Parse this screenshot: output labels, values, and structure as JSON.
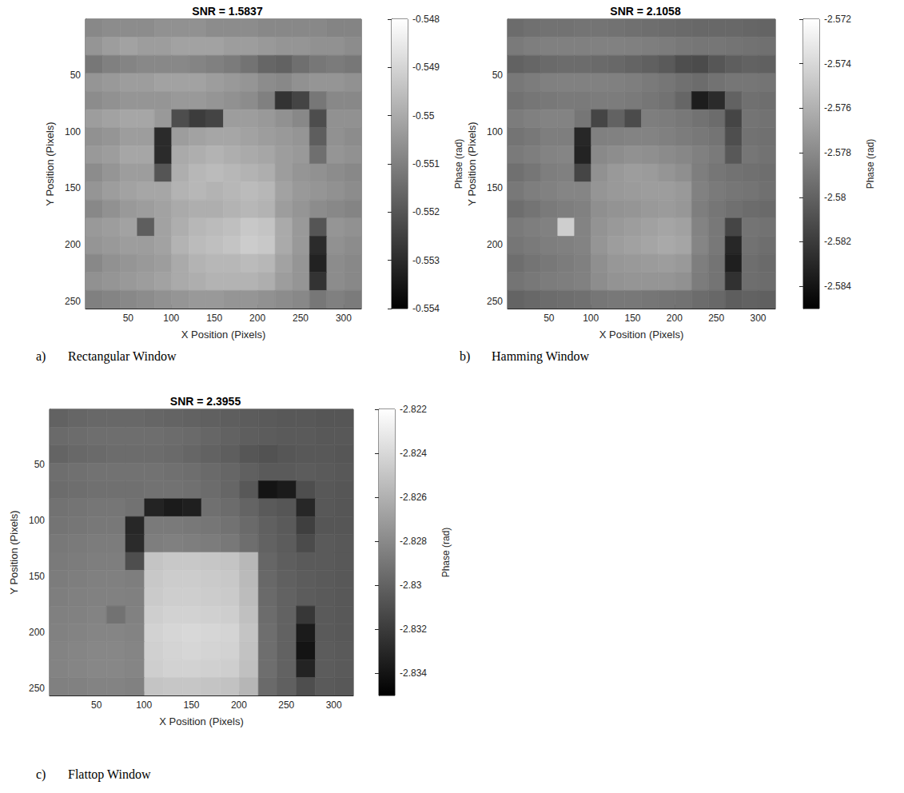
{
  "chart_data": [
    {
      "type": "heatmap",
      "title": "SNR = 1.5837",
      "panel": "a)",
      "caption": "Rectangular Window",
      "x_label": "X Position (Pixels)",
      "y_label": "Y Position (Pixels)",
      "colorbar_label": "Phase (rad)",
      "xlim": [
        0.5,
        320.5
      ],
      "ylim": [
        0.5,
        256.5
      ],
      "xticks": [
        50,
        100,
        150,
        200,
        250,
        300
      ],
      "yticks": [
        50,
        100,
        150,
        200,
        250
      ],
      "colorbar_lim": [
        -0.554,
        -0.548
      ],
      "colorbar_ticks": [
        -0.554,
        -0.553,
        -0.552,
        -0.551,
        -0.55,
        -0.549,
        -0.548
      ],
      "x": [
        10.5,
        30.5,
        50.5,
        70.5,
        90.5,
        110.5,
        130.5,
        150.5,
        170.5,
        190.5,
        210.5,
        230.5,
        250.5,
        270.5,
        290.5,
        310.5
      ],
      "y": [
        8.5,
        24.5,
        40.5,
        56.5,
        72.5,
        88.5,
        104.5,
        120.5,
        136.5,
        152.5,
        168.5,
        184.5,
        200.5,
        216.5,
        232.5,
        248.5
      ],
      "values": [
        [
          -0.5508,
          -0.5507,
          -0.5507,
          -0.5507,
          -0.5506,
          -0.5506,
          -0.5506,
          -0.5507,
          -0.5507,
          -0.5507,
          -0.5508,
          -0.5508,
          -0.5508,
          -0.5508,
          -0.5509,
          -0.5509
        ],
        [
          -0.5505,
          -0.5503,
          -0.5502,
          -0.5503,
          -0.5503,
          -0.5502,
          -0.5502,
          -0.5502,
          -0.5503,
          -0.5503,
          -0.5504,
          -0.5505,
          -0.5505,
          -0.5506,
          -0.5506,
          -0.5507
        ],
        [
          -0.5512,
          -0.551,
          -0.5509,
          -0.5508,
          -0.5508,
          -0.5508,
          -0.5509,
          -0.551,
          -0.5511,
          -0.5513,
          -0.5516,
          -0.5517,
          -0.5514,
          -0.5512,
          -0.5511,
          -0.5512
        ],
        [
          -0.5505,
          -0.5504,
          -0.5503,
          -0.5503,
          -0.5502,
          -0.5502,
          -0.5502,
          -0.5503,
          -0.5504,
          -0.5505,
          -0.5507,
          -0.5508,
          -0.5506,
          -0.5505,
          -0.5505,
          -0.5506
        ],
        [
          -0.5507,
          -0.5506,
          -0.5505,
          -0.5505,
          -0.5505,
          -0.5504,
          -0.5504,
          -0.5505,
          -0.5506,
          -0.5507,
          -0.551,
          -0.5528,
          -0.5524,
          -0.5512,
          -0.5508,
          -0.5508
        ],
        [
          -0.5503,
          -0.5502,
          -0.5501,
          -0.5501,
          -0.5504,
          -0.5522,
          -0.5526,
          -0.5524,
          -0.5503,
          -0.5503,
          -0.5504,
          -0.5506,
          -0.5508,
          -0.5522,
          -0.5506,
          -0.5506
        ],
        [
          -0.5506,
          -0.5505,
          -0.5503,
          -0.5503,
          -0.553,
          -0.5503,
          -0.5502,
          -0.5501,
          -0.5501,
          -0.5502,
          -0.5503,
          -0.5504,
          -0.5505,
          -0.5518,
          -0.5506,
          -0.5507
        ],
        [
          -0.5504,
          -0.5503,
          -0.5501,
          -0.5501,
          -0.553,
          -0.55,
          -0.5499,
          -0.5498,
          -0.5499,
          -0.55,
          -0.5501,
          -0.5503,
          -0.5504,
          -0.5514,
          -0.5505,
          -0.5506
        ],
        [
          -0.5507,
          -0.5505,
          -0.5503,
          -0.5503,
          -0.552,
          -0.5499,
          -0.5497,
          -0.5496,
          -0.5497,
          -0.5498,
          -0.5499,
          -0.5503,
          -0.5505,
          -0.5506,
          -0.5507,
          -0.5508
        ],
        [
          -0.5505,
          -0.5503,
          -0.5502,
          -0.5501,
          -0.5501,
          -0.5498,
          -0.5497,
          -0.5498,
          -0.5497,
          -0.5496,
          -0.5497,
          -0.5502,
          -0.5504,
          -0.5505,
          -0.5506,
          -0.5507
        ],
        [
          -0.5508,
          -0.5506,
          -0.5504,
          -0.5503,
          -0.5502,
          -0.55,
          -0.5499,
          -0.5499,
          -0.5498,
          -0.5497,
          -0.5498,
          -0.5503,
          -0.5505,
          -0.5507,
          -0.5508,
          -0.5509
        ],
        [
          -0.5504,
          -0.5503,
          -0.5502,
          -0.5518,
          -0.5502,
          -0.5499,
          -0.5497,
          -0.5496,
          -0.5495,
          -0.5493,
          -0.5494,
          -0.55,
          -0.5504,
          -0.552,
          -0.5505,
          -0.5506
        ],
        [
          -0.5505,
          -0.5504,
          -0.5503,
          -0.5503,
          -0.5502,
          -0.5498,
          -0.5496,
          -0.5495,
          -0.5494,
          -0.5492,
          -0.5493,
          -0.55,
          -0.5504,
          -0.553,
          -0.5506,
          -0.5507
        ],
        [
          -0.5508,
          -0.5506,
          -0.5505,
          -0.5504,
          -0.5503,
          -0.55,
          -0.5498,
          -0.5497,
          -0.5497,
          -0.5496,
          -0.5497,
          -0.5502,
          -0.5505,
          -0.5532,
          -0.5507,
          -0.5508
        ],
        [
          -0.5506,
          -0.5505,
          -0.5504,
          -0.5503,
          -0.5502,
          -0.55,
          -0.5499,
          -0.5498,
          -0.5498,
          -0.5498,
          -0.5499,
          -0.5503,
          -0.5505,
          -0.5528,
          -0.5507,
          -0.5508
        ],
        [
          -0.551,
          -0.5509,
          -0.5508,
          -0.5507,
          -0.5506,
          -0.5505,
          -0.5504,
          -0.5504,
          -0.5505,
          -0.5505,
          -0.5506,
          -0.5507,
          -0.5508,
          -0.5512,
          -0.551,
          -0.5511
        ]
      ]
    },
    {
      "type": "heatmap",
      "title": "SNR = 2.1058",
      "panel": "b)",
      "caption": "Hamming Window",
      "x_label": "X Position (Pixels)",
      "y_label": "Y Position (Pixels)",
      "colorbar_label": "Phase (rad)",
      "xlim": [
        0.5,
        320.5
      ],
      "ylim": [
        0.5,
        256.5
      ],
      "xticks": [
        50,
        100,
        150,
        200,
        250,
        300
      ],
      "yticks": [
        50,
        100,
        150,
        200,
        250
      ],
      "colorbar_lim": [
        -2.585,
        -2.572
      ],
      "colorbar_ticks": [
        -2.584,
        -2.582,
        -2.58,
        -2.578,
        -2.576,
        -2.574,
        -2.572
      ],
      "x": [
        10.5,
        30.5,
        50.5,
        70.5,
        90.5,
        110.5,
        130.5,
        150.5,
        170.5,
        190.5,
        210.5,
        230.5,
        250.5,
        270.5,
        290.5,
        310.5
      ],
      "y": [
        8.5,
        24.5,
        40.5,
        56.5,
        72.5,
        88.5,
        104.5,
        120.5,
        136.5,
        152.5,
        168.5,
        184.5,
        200.5,
        216.5,
        232.5,
        248.5
      ],
      "values": [
        [
          -2.5795,
          -2.5793,
          -2.5792,
          -2.5792,
          -2.5791,
          -2.5791,
          -2.5792,
          -2.5793,
          -2.5794,
          -2.5795,
          -2.5796,
          -2.5797,
          -2.5797,
          -2.5797,
          -2.5798,
          -2.5799
        ],
        [
          -2.5788,
          -2.5786,
          -2.5785,
          -2.5785,
          -2.5785,
          -2.5784,
          -2.5784,
          -2.5785,
          -2.5786,
          -2.5787,
          -2.5789,
          -2.579,
          -2.579,
          -2.5791,
          -2.5792,
          -2.5793
        ],
        [
          -2.58,
          -2.5798,
          -2.5796,
          -2.5795,
          -2.5795,
          -2.5796,
          -2.5797,
          -2.5799,
          -2.5801,
          -2.5804,
          -2.581,
          -2.5812,
          -2.5806,
          -2.5802,
          -2.58,
          -2.5801
        ],
        [
          -2.5789,
          -2.5787,
          -2.5785,
          -2.5784,
          -2.5784,
          -2.5784,
          -2.5785,
          -2.5786,
          -2.5788,
          -2.579,
          -2.5793,
          -2.5795,
          -2.5792,
          -2.579,
          -2.579,
          -2.5791
        ],
        [
          -2.5792,
          -2.579,
          -2.5789,
          -2.5788,
          -2.5788,
          -2.5787,
          -2.5787,
          -2.5788,
          -2.579,
          -2.5792,
          -2.5798,
          -2.5835,
          -2.5828,
          -2.58,
          -2.5793,
          -2.5794
        ],
        [
          -2.5787,
          -2.5785,
          -2.5783,
          -2.5783,
          -2.579,
          -2.5815,
          -2.58,
          -2.5812,
          -2.5786,
          -2.5787,
          -2.5789,
          -2.5792,
          -2.5795,
          -2.5815,
          -2.5791,
          -2.5792
        ],
        [
          -2.5791,
          -2.5789,
          -2.5786,
          -2.5786,
          -2.583,
          -2.5785,
          -2.5784,
          -2.5783,
          -2.5783,
          -2.5785,
          -2.5787,
          -2.5789,
          -2.5791,
          -2.581,
          -2.5792,
          -2.5793
        ],
        [
          -2.5788,
          -2.5786,
          -2.5783,
          -2.5782,
          -2.5832,
          -2.578,
          -2.5778,
          -2.5776,
          -2.5777,
          -2.5779,
          -2.5781,
          -2.5785,
          -2.5788,
          -2.5805,
          -2.579,
          -2.5792
        ],
        [
          -2.5793,
          -2.579,
          -2.5786,
          -2.5785,
          -2.5815,
          -2.5776,
          -2.5772,
          -2.577,
          -2.5771,
          -2.5774,
          -2.5777,
          -2.5786,
          -2.579,
          -2.5792,
          -2.5793,
          -2.5794
        ],
        [
          -2.5789,
          -2.5786,
          -2.5784,
          -2.5782,
          -2.5782,
          -2.5774,
          -2.5772,
          -2.5771,
          -2.577,
          -2.577,
          -2.5772,
          -2.5784,
          -2.5788,
          -2.579,
          -2.5791,
          -2.5793
        ],
        [
          -2.5794,
          -2.5791,
          -2.5788,
          -2.5786,
          -2.5784,
          -2.5777,
          -2.5775,
          -2.5774,
          -2.5772,
          -2.5771,
          -2.5773,
          -2.5786,
          -2.579,
          -2.5793,
          -2.5795,
          -2.5796
        ],
        [
          -2.5788,
          -2.5786,
          -2.5784,
          -2.5745,
          -2.5783,
          -2.5775,
          -2.5772,
          -2.577,
          -2.5768,
          -2.5766,
          -2.5768,
          -2.5783,
          -2.5789,
          -2.5815,
          -2.5791,
          -2.5792
        ],
        [
          -2.579,
          -2.5788,
          -2.5786,
          -2.5785,
          -2.5783,
          -2.5774,
          -2.577,
          -2.5768,
          -2.5766,
          -2.5764,
          -2.5766,
          -2.5782,
          -2.5789,
          -2.583,
          -2.5792,
          -2.5794
        ],
        [
          -2.5794,
          -2.5791,
          -2.5789,
          -2.5787,
          -2.5785,
          -2.5777,
          -2.5773,
          -2.5772,
          -2.5771,
          -2.577,
          -2.5772,
          -2.5786,
          -2.5791,
          -2.5834,
          -2.5794,
          -2.5796
        ],
        [
          -2.5791,
          -2.5789,
          -2.5787,
          -2.5786,
          -2.5784,
          -2.5778,
          -2.5775,
          -2.5774,
          -2.5774,
          -2.5774,
          -2.5776,
          -2.5787,
          -2.5791,
          -2.5825,
          -2.5794,
          -2.5795
        ],
        [
          -2.5799,
          -2.5797,
          -2.5795,
          -2.5794,
          -2.5793,
          -2.579,
          -2.5789,
          -2.5789,
          -2.579,
          -2.5791,
          -2.5792,
          -2.5795,
          -2.5797,
          -2.5802,
          -2.58,
          -2.5801
        ]
      ]
    },
    {
      "type": "heatmap",
      "title": "SNR = 2.3955",
      "panel": "c)",
      "caption": "Flattop Window",
      "x_label": "X Position (Pixels)",
      "y_label": "Y Position (Pixels)",
      "colorbar_label": "Phase (rad)",
      "xlim": [
        0.5,
        320.5
      ],
      "ylim": [
        0.5,
        256.5
      ],
      "xticks": [
        50,
        100,
        150,
        200,
        250,
        300
      ],
      "yticks": [
        50,
        100,
        150,
        200,
        250
      ],
      "colorbar_lim": [
        -2.835,
        -2.822
      ],
      "colorbar_ticks": [
        -2.834,
        -2.832,
        -2.83,
        -2.828,
        -2.826,
        -2.824,
        -2.822
      ],
      "x": [
        10.5,
        30.5,
        50.5,
        70.5,
        90.5,
        110.5,
        130.5,
        150.5,
        170.5,
        190.5,
        210.5,
        230.5,
        250.5,
        270.5,
        290.5,
        310.5
      ],
      "y": [
        8.5,
        24.5,
        40.5,
        56.5,
        72.5,
        88.5,
        104.5,
        120.5,
        136.5,
        152.5,
        168.5,
        184.5,
        200.5,
        216.5,
        232.5,
        248.5
      ],
      "values": [
        [
          -2.83,
          -2.8298,
          -2.8297,
          -2.8297,
          -2.8297,
          -2.8298,
          -2.8299,
          -2.83,
          -2.8301,
          -2.8302,
          -2.8303,
          -2.8304,
          -2.8305,
          -2.8305,
          -2.8306,
          -2.8306
        ],
        [
          -2.8296,
          -2.8295,
          -2.8294,
          -2.8294,
          -2.8294,
          -2.8294,
          -2.8295,
          -2.8296,
          -2.8298,
          -2.83,
          -2.8302,
          -2.8303,
          -2.8304,
          -2.8304,
          -2.8305,
          -2.8305
        ],
        [
          -2.8299,
          -2.8297,
          -2.8296,
          -2.8295,
          -2.8295,
          -2.8295,
          -2.8296,
          -2.8298,
          -2.83,
          -2.8302,
          -2.8306,
          -2.8308,
          -2.8306,
          -2.8305,
          -2.8305,
          -2.8306
        ],
        [
          -2.8294,
          -2.8293,
          -2.8292,
          -2.8292,
          -2.8292,
          -2.8292,
          -2.8293,
          -2.8294,
          -2.8296,
          -2.8298,
          -2.8301,
          -2.8304,
          -2.8304,
          -2.8303,
          -2.8304,
          -2.8305
        ],
        [
          -2.8295,
          -2.8294,
          -2.8293,
          -2.8293,
          -2.8293,
          -2.8292,
          -2.8292,
          -2.8293,
          -2.8295,
          -2.8298,
          -2.8305,
          -2.834,
          -2.8336,
          -2.831,
          -2.8305,
          -2.8306
        ],
        [
          -2.8292,
          -2.8291,
          -2.829,
          -2.829,
          -2.8292,
          -2.8332,
          -2.8336,
          -2.8334,
          -2.8293,
          -2.8295,
          -2.8299,
          -2.8304,
          -2.8306,
          -2.833,
          -2.8305,
          -2.8306
        ],
        [
          -2.8291,
          -2.829,
          -2.8289,
          -2.8289,
          -2.833,
          -2.8288,
          -2.8288,
          -2.8289,
          -2.829,
          -2.8292,
          -2.8296,
          -2.8301,
          -2.8304,
          -2.8318,
          -2.8306,
          -2.8306
        ],
        [
          -2.8289,
          -2.8288,
          -2.8287,
          -2.8287,
          -2.8328,
          -2.8286,
          -2.8285,
          -2.8286,
          -2.8287,
          -2.8289,
          -2.8294,
          -2.83,
          -2.8303,
          -2.8312,
          -2.8304,
          -2.8305
        ],
        [
          -2.8288,
          -2.8287,
          -2.8286,
          -2.8286,
          -2.831,
          -2.825,
          -2.8248,
          -2.8248,
          -2.8249,
          -2.825,
          -2.8256,
          -2.8298,
          -2.8302,
          -2.8304,
          -2.8304,
          -2.8305
        ],
        [
          -2.8287,
          -2.8286,
          -2.8285,
          -2.8285,
          -2.8286,
          -2.8248,
          -2.8246,
          -2.8246,
          -2.8247,
          -2.8248,
          -2.8255,
          -2.8297,
          -2.8301,
          -2.8303,
          -2.8304,
          -2.8305
        ],
        [
          -2.8286,
          -2.8285,
          -2.8284,
          -2.8284,
          -2.8285,
          -2.8247,
          -2.8245,
          -2.8245,
          -2.8246,
          -2.8247,
          -2.8254,
          -2.8296,
          -2.83,
          -2.8303,
          -2.8304,
          -2.8305
        ],
        [
          -2.8285,
          -2.8284,
          -2.8283,
          -2.8292,
          -2.8284,
          -2.8245,
          -2.8243,
          -2.8243,
          -2.8244,
          -2.8245,
          -2.8252,
          -2.8295,
          -2.83,
          -2.8322,
          -2.8304,
          -2.8305
        ],
        [
          -2.8284,
          -2.8283,
          -2.8282,
          -2.8282,
          -2.8283,
          -2.8243,
          -2.8241,
          -2.824,
          -2.8241,
          -2.8242,
          -2.825,
          -2.8294,
          -2.83,
          -2.8336,
          -2.8304,
          -2.8305
        ],
        [
          -2.8283,
          -2.8282,
          -2.8281,
          -2.8281,
          -2.8282,
          -2.8244,
          -2.8242,
          -2.8241,
          -2.8242,
          -2.8243,
          -2.8251,
          -2.8294,
          -2.83,
          -2.834,
          -2.8303,
          -2.8304
        ],
        [
          -2.8283,
          -2.8282,
          -2.8281,
          -2.8281,
          -2.8282,
          -2.8245,
          -2.8243,
          -2.8243,
          -2.8244,
          -2.8245,
          -2.8252,
          -2.8294,
          -2.83,
          -2.8332,
          -2.8303,
          -2.8304
        ],
        [
          -2.8285,
          -2.8284,
          -2.8283,
          -2.8283,
          -2.8284,
          -2.825,
          -2.8249,
          -2.8249,
          -2.825,
          -2.8251,
          -2.8257,
          -2.8296,
          -2.8301,
          -2.831,
          -2.8304,
          -2.8305
        ]
      ]
    }
  ]
}
